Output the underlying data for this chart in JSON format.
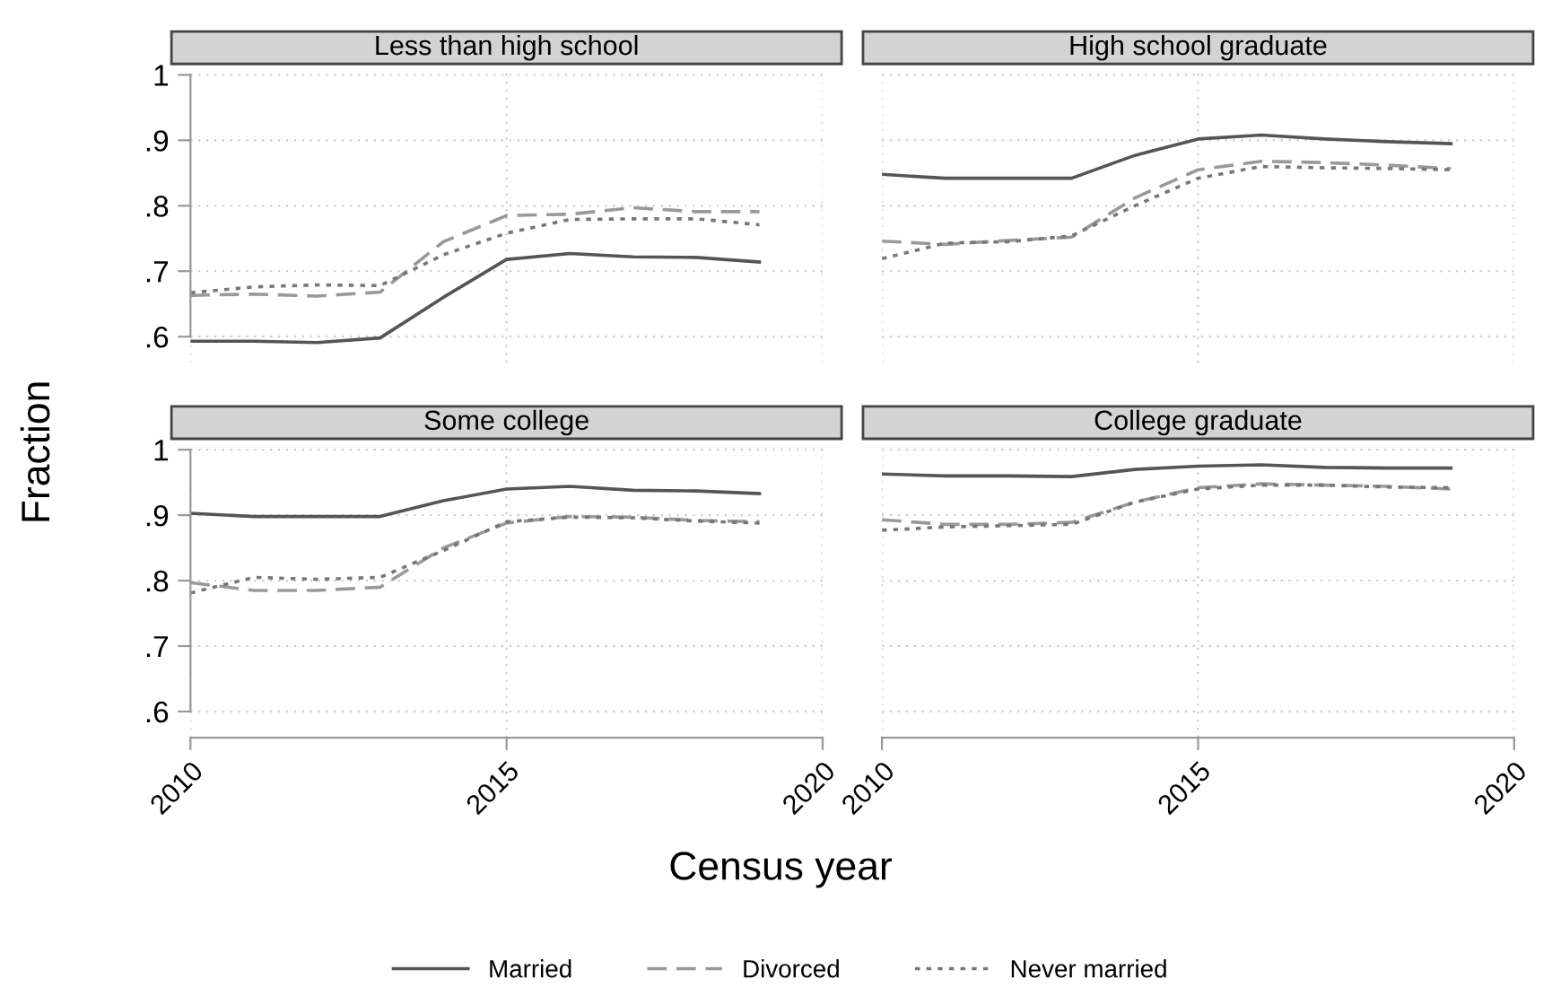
{
  "chart_data": [
    {
      "type": "line",
      "title": "Less than high school",
      "ylabel": "Fraction",
      "x": [
        2010,
        2011,
        2012,
        2013,
        2014,
        2015,
        2016,
        2017,
        2018,
        2019
      ],
      "xlim": [
        2010,
        2020
      ],
      "xticks": [
        2010,
        2015,
        2020
      ],
      "ylim": [
        0.56,
        1.01
      ],
      "yticks": [
        {
          "value": 0.6,
          "label": ".6"
        },
        {
          "value": 0.7,
          "label": ".7"
        },
        {
          "value": 0.8,
          "label": ".8"
        },
        {
          "value": 0.9,
          "label": ".9"
        },
        {
          "value": 1,
          "label": "1"
        }
      ],
      "grid": true,
      "tick_labels": "y",
      "marker": "none",
      "legend": "bottom",
      "series": [
        {
          "name": "Married",
          "color": "#555555",
          "line_style": "solid",
          "values": [
            0.593,
            0.593,
            0.591,
            0.598,
            0.66,
            0.718,
            0.727,
            0.722,
            0.721,
            0.714
          ]
        },
        {
          "name": "Divorced",
          "color": "#999999",
          "line_style": "dashed",
          "values": [
            0.663,
            0.665,
            0.662,
            0.668,
            0.745,
            0.785,
            0.787,
            0.797,
            0.791,
            0.791
          ]
        },
        {
          "name": "Never married",
          "color": "#777777",
          "line_style": "dotted",
          "values": [
            0.667,
            0.676,
            0.679,
            0.678,
            0.725,
            0.758,
            0.779,
            0.78,
            0.78,
            0.771
          ]
        }
      ]
    },
    {
      "type": "line",
      "title": "High school graduate",
      "x": [
        2010,
        2011,
        2012,
        2013,
        2014,
        2015,
        2016,
        2017,
        2018,
        2019
      ],
      "xlim": [
        2010,
        2020
      ],
      "xticks": [
        2010,
        2015,
        2020
      ],
      "ylim": [
        0.56,
        1.01
      ],
      "yticks": [
        {
          "value": 0.6,
          "label": null
        },
        {
          "value": 0.7,
          "label": null
        },
        {
          "value": 0.8,
          "label": null
        },
        {
          "value": 0.9,
          "label": null
        },
        {
          "value": 1,
          "label": null
        }
      ],
      "grid": true,
      "tick_labels": false,
      "marker": "none",
      "series": [
        {
          "color": "#555555",
          "line_style": "solid",
          "values": [
            0.848,
            0.842,
            0.842,
            0.842,
            0.877,
            0.902,
            0.908,
            0.902,
            0.898,
            0.895
          ]
        },
        {
          "color": "#999999",
          "line_style": "dashed",
          "values": [
            0.746,
            0.741,
            0.747,
            0.752,
            0.812,
            0.855,
            0.868,
            0.866,
            0.862,
            0.857
          ]
        },
        {
          "color": "#777777",
          "line_style": "dotted",
          "values": [
            0.719,
            0.743,
            0.745,
            0.754,
            0.8,
            0.842,
            0.86,
            0.858,
            0.857,
            0.855
          ]
        }
      ]
    },
    {
      "type": "line",
      "title": "Some college",
      "x": [
        2010,
        2011,
        2012,
        2013,
        2014,
        2015,
        2016,
        2017,
        2018,
        2019
      ],
      "xlim": [
        2010,
        2020
      ],
      "xticks": [
        2010,
        2015,
        2020
      ],
      "ylim": [
        0.56,
        1.01
      ],
      "yticks": [
        {
          "value": 0.6,
          "label": ".6"
        },
        {
          "value": 0.7,
          "label": ".7"
        },
        {
          "value": 0.8,
          "label": ".8"
        },
        {
          "value": 0.9,
          "label": ".9"
        },
        {
          "value": 1,
          "label": "1"
        }
      ],
      "grid": true,
      "marker": "none",
      "series": [
        {
          "color": "#555555",
          "line_style": "solid",
          "values": [
            0.903,
            0.898,
            0.898,
            0.898,
            0.922,
            0.94,
            0.944,
            0.938,
            0.937,
            0.933
          ]
        },
        {
          "color": "#999999",
          "line_style": "dashed",
          "values": [
            0.797,
            0.785,
            0.785,
            0.79,
            0.85,
            0.888,
            0.898,
            0.897,
            0.892,
            0.89
          ]
        },
        {
          "color": "#777777",
          "line_style": "dotted",
          "values": [
            0.781,
            0.805,
            0.802,
            0.805,
            0.846,
            0.89,
            0.897,
            0.896,
            0.891,
            0.888
          ]
        }
      ]
    },
    {
      "type": "line",
      "title": "College graduate",
      "xlabel": "Census year",
      "x": [
        2010,
        2011,
        2012,
        2013,
        2014,
        2015,
        2016,
        2017,
        2018,
        2019
      ],
      "xlim": [
        2010,
        2020
      ],
      "xticks": [
        2010,
        2015,
        2020
      ],
      "ylim": [
        0.56,
        1.01
      ],
      "yticks": [
        {
          "value": 0.6,
          "label": null
        },
        {
          "value": 0.7,
          "label": null
        },
        {
          "value": 0.8,
          "label": null
        },
        {
          "value": 0.9,
          "label": null
        },
        {
          "value": 1,
          "label": null
        }
      ],
      "grid": true,
      "tick_labels": "x",
      "marker": "none",
      "series": [
        {
          "color": "#555555",
          "line_style": "solid",
          "values": [
            0.963,
            0.96,
            0.96,
            0.959,
            0.97,
            0.975,
            0.977,
            0.973,
            0.972,
            0.972
          ]
        },
        {
          "color": "#999999",
          "line_style": "dashed",
          "values": [
            0.893,
            0.886,
            0.886,
            0.889,
            0.92,
            0.942,
            0.948,
            0.946,
            0.944,
            0.94
          ]
        },
        {
          "color": "#777777",
          "line_style": "dotted",
          "values": [
            0.877,
            0.882,
            0.884,
            0.886,
            0.92,
            0.94,
            0.946,
            0.946,
            0.943,
            0.942
          ]
        }
      ]
    }
  ]
}
